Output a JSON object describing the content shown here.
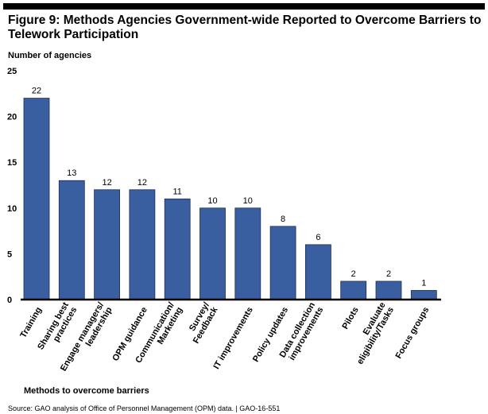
{
  "figure": {
    "title": "Figure 9: Methods Agencies Government-wide Reported to Overcome Barriers to Telework Participation",
    "source": "Source: GAO analysis of Office of Personnel Management (OPM) data. | GAO-16-551"
  },
  "chart_data": {
    "type": "bar",
    "title": "Figure 9: Methods Agencies Government-wide Reported to Overcome Barriers to Telework Participation",
    "ylabel": "Number of agencies",
    "xlabel": "Methods to overcome barriers",
    "ylim": [
      0,
      25
    ],
    "yticks": [
      0,
      5,
      10,
      15,
      20,
      25
    ],
    "grid": false,
    "legend": "none",
    "bar_color": "#3a5fa0",
    "categories": [
      "Training",
      "Sharing best practices",
      "Engage managers/ leadership",
      "OPM guidance",
      "Communication/ Marketing",
      "Survey/ Feedback",
      "IT improvements",
      "Policy updates",
      "Data collection improvements",
      "Pilots",
      "Evaluate eligibility/Tasks",
      "Focus groups"
    ],
    "category_label_lines": [
      [
        "Training"
      ],
      [
        "Sharing best",
        "practices"
      ],
      [
        "Engage managers/",
        "leadership"
      ],
      [
        "OPM guidance"
      ],
      [
        "Communication/",
        "Marketing"
      ],
      [
        "Survey/",
        "Feedback"
      ],
      [
        "IT improvements"
      ],
      [
        "Policy updates"
      ],
      [
        "Data collection",
        "improvements"
      ],
      [
        "Pilots"
      ],
      [
        "Evaluate",
        "eligibility/Tasks"
      ],
      [
        "Focus groups"
      ]
    ],
    "values": [
      22,
      13,
      12,
      12,
      11,
      10,
      10,
      8,
      6,
      2,
      2,
      1
    ]
  }
}
